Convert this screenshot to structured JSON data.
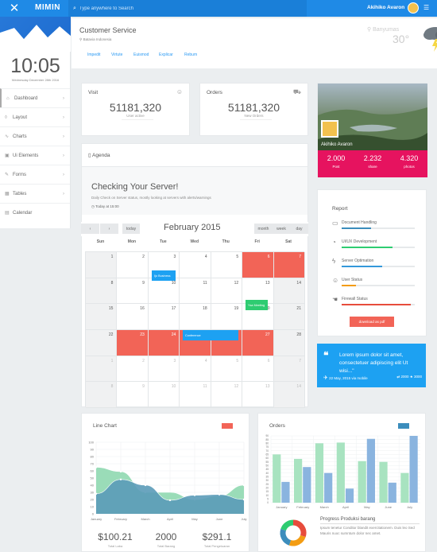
{
  "topbar": {
    "close_icon": "close-icon",
    "logo": "MIMIN",
    "search_placeholder": "Type anywhere to Search",
    "user": "Akihiko Avaron"
  },
  "sidebar": {
    "clock": "10:05",
    "date": "Wednesday December 28th 2016",
    "items": [
      {
        "label": "Dashboard",
        "icon": "home-icon",
        "ic": "⌂"
      },
      {
        "label": "Layout",
        "icon": "layout-icon",
        "ic": "◊"
      },
      {
        "label": "Charts",
        "icon": "chart-icon",
        "ic": "∿"
      },
      {
        "label": "Ui Elements",
        "icon": "browser-icon",
        "ic": "▣"
      },
      {
        "label": "Forms",
        "icon": "edit-icon",
        "ic": "✎"
      },
      {
        "label": "Tables",
        "icon": "table-icon",
        "ic": "▦"
      },
      {
        "label": "Calendar",
        "icon": "calendar-icon",
        "ic": "▤"
      }
    ]
  },
  "customer": {
    "title": "Customer Service",
    "location": "Batavia Indonesia",
    "links": [
      "Impedit",
      "Virtute",
      "Euismod",
      "Explicar",
      "Rebum"
    ],
    "city": "Banyumas",
    "temp": "30°"
  },
  "visit": {
    "title": "Visit",
    "value": "51181,320",
    "sub": "User active"
  },
  "orders_card": {
    "title": "Orders",
    "value": "51181,320",
    "sub": "New Orders"
  },
  "profile": {
    "name": "Akihiko Avaron",
    "stats": [
      {
        "n": "2.000",
        "l": "Post"
      },
      {
        "n": "2.232",
        "l": "share"
      },
      {
        "n": "4.320",
        "l": "photos"
      }
    ]
  },
  "agenda": {
    "title": "Agenda",
    "heading": "Checking Your Server!",
    "sub": "Daily Check on Server status, mostly looking at servers with alerts/warnings",
    "time": "Today at 15:00"
  },
  "calendar": {
    "prev": "‹",
    "next": "›",
    "today": "today",
    "month": "February 2015",
    "views": [
      "month",
      "week",
      "day"
    ],
    "days": [
      "Sun",
      "Mon",
      "Tue",
      "Wed",
      "Thu",
      "Fri",
      "Sat"
    ],
    "weeks": [
      [
        "1",
        "2",
        "3",
        "4",
        "5",
        "6",
        "7"
      ],
      [
        "8",
        "9",
        "10",
        "11",
        "12",
        "13",
        "14"
      ],
      [
        "15",
        "16",
        "17",
        "18",
        "19",
        "20",
        "21"
      ],
      [
        "22",
        "23",
        "24",
        "25",
        "26",
        "27",
        "28"
      ],
      [
        "1",
        "2",
        "3",
        "4",
        "5",
        "6",
        "7"
      ],
      [
        "8",
        "9",
        "10",
        "11",
        "12",
        "13",
        "14"
      ]
    ],
    "events": {
      "a": "Ijo Business",
      "b": "Ysa Meeting",
      "c": "Conference"
    }
  },
  "report": {
    "title": "Report",
    "rows": [
      {
        "label": "Document Handling",
        "pct": 40,
        "color": "#3c8dbc",
        "icon": "folder-icon",
        "ic": "▭"
      },
      {
        "label": "UI/UX Development",
        "pct": 70,
        "color": "#2ecc71",
        "icon": "pie-icon",
        "ic": "◔"
      },
      {
        "label": "Server Optimation",
        "pct": 55,
        "color": "#3498db",
        "icon": "bolt-icon",
        "ic": "ϟ"
      },
      {
        "label": "User Status",
        "pct": 20,
        "color": "#f39c12",
        "icon": "user-icon",
        "ic": "☺"
      },
      {
        "label": "Firewall Status",
        "pct": 95,
        "color": "#e74c3c",
        "icon": "hand-icon",
        "ic": "☚"
      }
    ],
    "button": "download as pdf"
  },
  "tweet": {
    "quote": "❝",
    "text": "Lorem ipsum dolor sit amet, consectetuer adipiscing elit Ut wisi...\"",
    "date": "22 May, 2015 via mobile",
    "stats": "2000 ★ 3000"
  },
  "line_chart": {
    "title": "Line Chart",
    "legend_color": "#f26457",
    "summary": [
      {
        "n": "$100.21",
        "l": "Total Laba"
      },
      {
        "n": "2000",
        "l": "Total Barang"
      },
      {
        "n": "$291.1",
        "l": "Total Pengeluaran"
      }
    ]
  },
  "orders_chart": {
    "title": "Orders",
    "progress_title": "Progress Produksi barang",
    "progress_desc": "Ipsum tenetur Conditor blandit exercitationem. Duis leo Sed Mauris nuoc sumntum dolor nec amet.",
    "donut": [
      {
        "value": 30,
        "color": "#e74c3c"
      },
      {
        "value": 25,
        "color": "#f39c12"
      },
      {
        "value": 25,
        "color": "#3c8dbc"
      },
      {
        "value": 20,
        "color": "#2ecc71"
      }
    ]
  },
  "chart_data": [
    {
      "type": "area",
      "title": "Line Chart",
      "categories": [
        "January",
        "February",
        "March",
        "April",
        "May",
        "June",
        "July"
      ],
      "ylim": [
        0,
        100
      ],
      "yticks": [
        0,
        10,
        20,
        30,
        40,
        50,
        60,
        70,
        80,
        90,
        100
      ],
      "series": [
        {
          "values": [
            65,
            59,
            30,
            30,
            20,
            25,
            40
          ],
          "color": "#8fd8b0"
        },
        {
          "values": [
            28,
            48,
            40,
            19,
            26,
            27,
            20
          ],
          "color": "#5b9bb8"
        }
      ]
    },
    {
      "type": "bar",
      "title": "Orders",
      "categories": [
        "January",
        "February",
        "March",
        "April",
        "May",
        "June",
        "July"
      ],
      "ylim": [
        0,
        90
      ],
      "yticks": [
        0,
        5,
        10,
        15,
        20,
        25,
        30,
        35,
        40,
        45,
        50,
        55,
        60,
        65,
        70,
        75,
        80,
        85,
        90
      ],
      "series": [
        {
          "values": [
            65,
            59,
            80,
            81,
            56,
            55,
            40
          ],
          "color": "#a8e3c0"
        },
        {
          "values": [
            28,
            48,
            40,
            19,
            86,
            27,
            90
          ],
          "color": "#8ab4df"
        }
      ]
    }
  ]
}
